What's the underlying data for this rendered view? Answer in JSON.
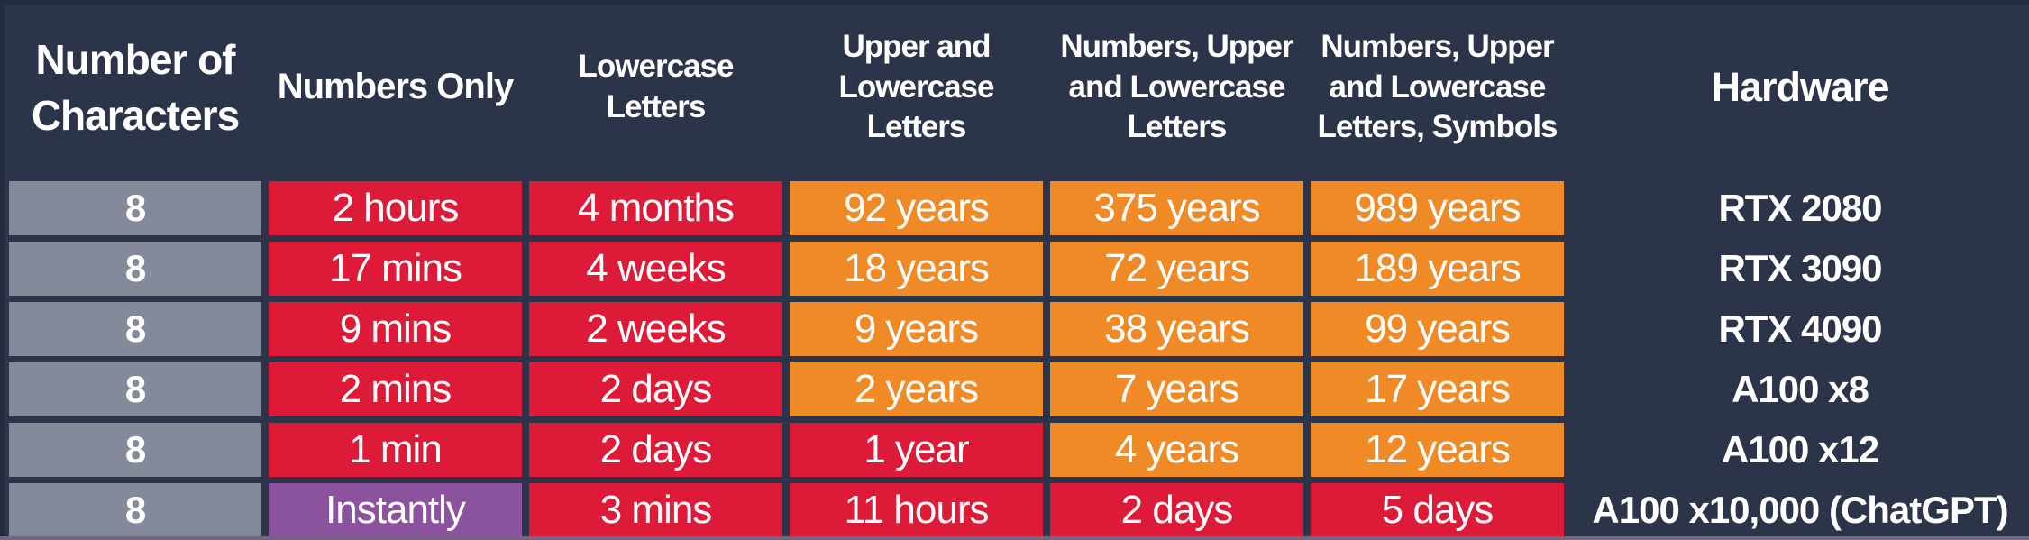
{
  "colors": {
    "background": "#2C344A",
    "red": "#DD1A38",
    "orange": "#F08A26",
    "purple": "#8B539E",
    "gray": "#848A99",
    "text": "#FFFFFF",
    "edge-dark": "#232B3E",
    "edge-bottom": "#756581"
  },
  "chart_data": {
    "type": "table",
    "columns": [
      "Number of Characters",
      "Numbers Only",
      "Lowercase Letters",
      "Upper and Lowercase Letters",
      "Numbers, Upper and Lowercase Letters",
      "Numbers, Upper and Lowercase Letters, Symbols",
      "Hardware"
    ],
    "rows": [
      {
        "cells": [
          {
            "text": "8",
            "color": "gray"
          },
          {
            "text": "2 hours",
            "color": "red"
          },
          {
            "text": "4 months",
            "color": "red"
          },
          {
            "text": "92 years",
            "color": "orange"
          },
          {
            "text": "375 years",
            "color": "orange"
          },
          {
            "text": "989 years",
            "color": "orange"
          },
          {
            "text": "RTX 2080",
            "color": "plain"
          }
        ]
      },
      {
        "cells": [
          {
            "text": "8",
            "color": "gray"
          },
          {
            "text": "17 mins",
            "color": "red"
          },
          {
            "text": "4 weeks",
            "color": "red"
          },
          {
            "text": "18 years",
            "color": "orange"
          },
          {
            "text": "72 years",
            "color": "orange"
          },
          {
            "text": "189 years",
            "color": "orange"
          },
          {
            "text": "RTX 3090",
            "color": "plain"
          }
        ]
      },
      {
        "cells": [
          {
            "text": "8",
            "color": "gray"
          },
          {
            "text": "9 mins",
            "color": "red"
          },
          {
            "text": "2 weeks",
            "color": "red"
          },
          {
            "text": "9 years",
            "color": "orange"
          },
          {
            "text": "38 years",
            "color": "orange"
          },
          {
            "text": "99 years",
            "color": "orange"
          },
          {
            "text": "RTX 4090",
            "color": "plain"
          }
        ]
      },
      {
        "cells": [
          {
            "text": "8",
            "color": "gray"
          },
          {
            "text": "2 mins",
            "color": "red"
          },
          {
            "text": "2 days",
            "color": "red"
          },
          {
            "text": "2 years",
            "color": "orange"
          },
          {
            "text": "7 years",
            "color": "orange"
          },
          {
            "text": "17 years",
            "color": "orange"
          },
          {
            "text": "A100 x8",
            "color": "plain"
          }
        ]
      },
      {
        "cells": [
          {
            "text": "8",
            "color": "gray"
          },
          {
            "text": "1 min",
            "color": "red"
          },
          {
            "text": "2 days",
            "color": "red"
          },
          {
            "text": "1 year",
            "color": "red"
          },
          {
            "text": "4 years",
            "color": "orange"
          },
          {
            "text": "12 years",
            "color": "orange"
          },
          {
            "text": "A100 x12",
            "color": "plain"
          }
        ]
      },
      {
        "cells": [
          {
            "text": "8",
            "color": "gray"
          },
          {
            "text": "Instantly",
            "color": "purple"
          },
          {
            "text": "3 mins",
            "color": "red"
          },
          {
            "text": "11 hours",
            "color": "red"
          },
          {
            "text": "2 days",
            "color": "red"
          },
          {
            "text": "5 days",
            "color": "red"
          },
          {
            "text": "A100 x10,000 (ChatGPT)",
            "color": "plain"
          }
        ]
      }
    ]
  }
}
